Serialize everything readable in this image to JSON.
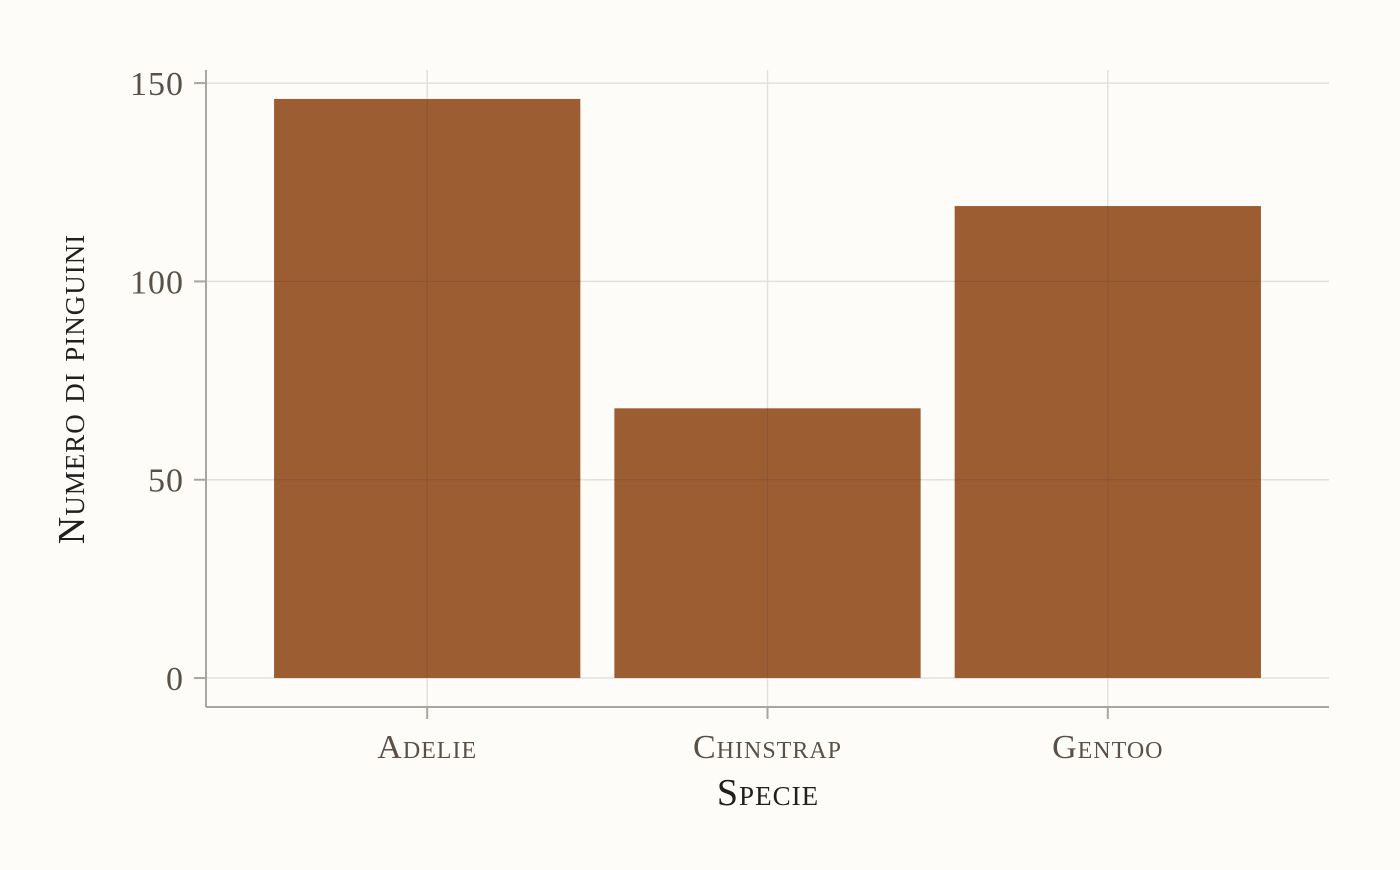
{
  "chart_data": {
    "type": "bar",
    "categories": [
      "Adelie",
      "Chinstrap",
      "Gentoo"
    ],
    "values": [
      146,
      68,
      119
    ],
    "xlabel": "Specie",
    "ylabel": "Numero di pinguini",
    "ylim": [
      -7.3,
      153.3
    ],
    "yticks": [
      0,
      50,
      100,
      150
    ],
    "ytick_labels": [
      "0",
      "50",
      "100",
      "150"
    ],
    "grid": true,
    "legend": "none",
    "colors": {
      "bar": "#9a5a2f",
      "background": "#fdfcf9",
      "grid": "#e3e1dd",
      "axis": "#a9a6a1",
      "tick_text": "#5b5048",
      "title_text": "#1f1f1f"
    }
  }
}
